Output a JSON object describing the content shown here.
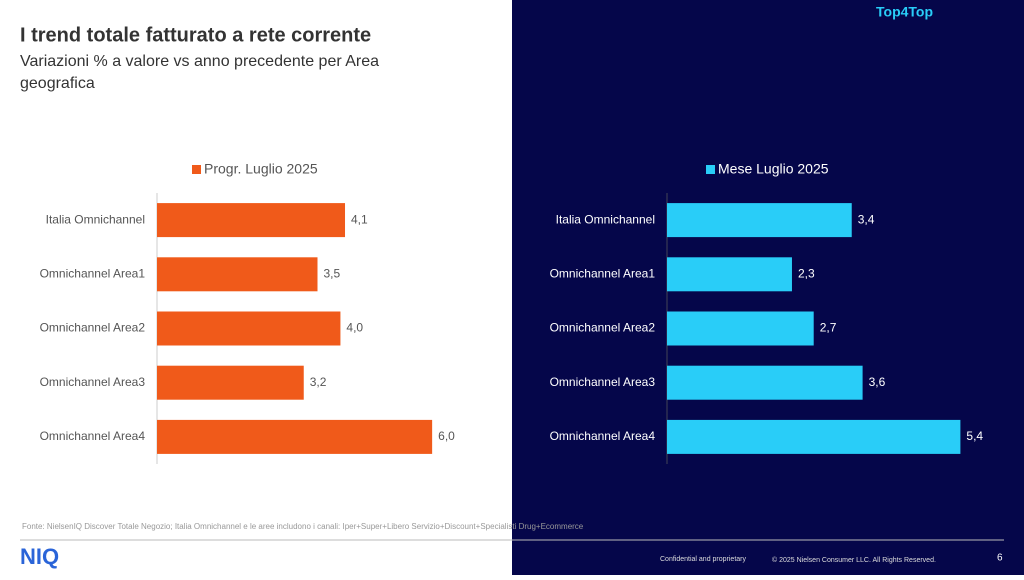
{
  "header": {
    "title": "I trend totale fatturato a rete corrente",
    "subtitle_lines": [
      "Variazioni % a valore vs anno precedente per Area",
      "geografica"
    ],
    "brand": "Top4Top"
  },
  "chart_data": [
    {
      "type": "bar",
      "orientation": "horizontal",
      "categories": [
        "Italia Omnichannel",
        "Omnichannel Area1",
        "Omnichannel Area2",
        "Omnichannel Area3",
        "Omnichannel Area4"
      ],
      "series": [
        {
          "name": "Progr. Luglio 2025",
          "color": "#f05a1a",
          "values": [
            4.1,
            3.5,
            4.0,
            3.2,
            6.0
          ],
          "value_labels": [
            "4,1",
            "3,5",
            "4,0",
            "3,2",
            "6,0"
          ]
        }
      ],
      "xlim": [
        0,
        7
      ]
    },
    {
      "type": "bar",
      "orientation": "horizontal",
      "categories": [
        "Italia Omnichannel",
        "Omnichannel Area1",
        "Omnichannel Area2",
        "Omnichannel Area3",
        "Omnichannel Area4"
      ],
      "series": [
        {
          "name": "Mese Luglio 2025",
          "color": "#29cdf8",
          "values": [
            3.4,
            2.3,
            2.7,
            3.6,
            5.4
          ],
          "value_labels": [
            "3,4",
            "2,3",
            "2,7",
            "3,6",
            "5,4"
          ]
        }
      ],
      "xlim": [
        0,
        6
      ]
    }
  ],
  "footer": {
    "source": "Fonte: NielsenIQ Discover Totale Negozio; Italia Omnichannel e le aree includono i canali: Iper+Super+Libero Servizio+Discount+Specialisti Drug+Ecommerce",
    "logo": "NIQ",
    "confidential": "Confidential and proprietary",
    "copyright": "© 2025 Nielsen Consumer LLC. All Rights Reserved.",
    "page": "6"
  }
}
